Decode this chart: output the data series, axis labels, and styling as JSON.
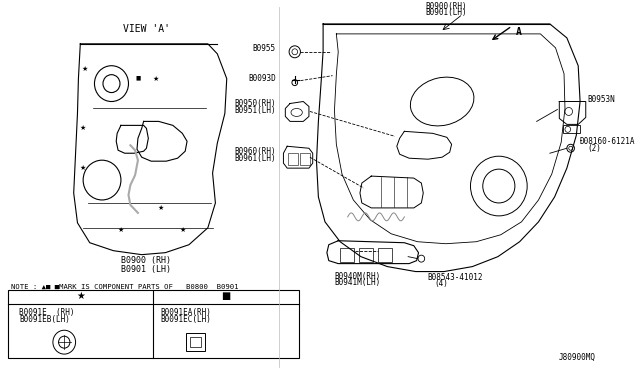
{
  "bg_color": "#ffffff",
  "line_color": "#000000",
  "fig_width": 6.4,
  "fig_height": 3.72,
  "view_a_label": "VIEW 'A'",
  "note_text": "NOTE : ▲■ ■MARK IS COMPONENT PARTS OF   B0800  B0901",
  "J80900MQ": "J80900MQ",
  "A_label": "A",
  "parts_labels": {
    "B0900_RH_top": "B0900(RH)",
    "B0901_LH_top": "B0901(LH)",
    "B0955": "B0955",
    "B0093D": "B0093D",
    "B0950_RH": "B0950(RH)",
    "B0951_LH": "B0951(LH)",
    "B0960_RH": "B0960(RH)",
    "B0961_LH": "B0961(LH)",
    "B0940M_RH": "B0940M(RH)",
    "B0941M_LH": "B0941M(LH)",
    "B08543_line1": "B08543-41012",
    "B08543_line2": "(4)",
    "B0953N": "B0953N",
    "B08160_line1": "Ð08160-6121A",
    "B08160_line2": "(2)",
    "B0900_RH_view": "B0900 (RH)",
    "B0901_LH_view": "B0901 (LH)",
    "cell1_line1": "B0091E  (RH)",
    "cell1_line2": "B0091EB(LH)",
    "cell2_line1": "B0091EA(RH)",
    "cell2_line2": "B0091EC(LH)"
  }
}
